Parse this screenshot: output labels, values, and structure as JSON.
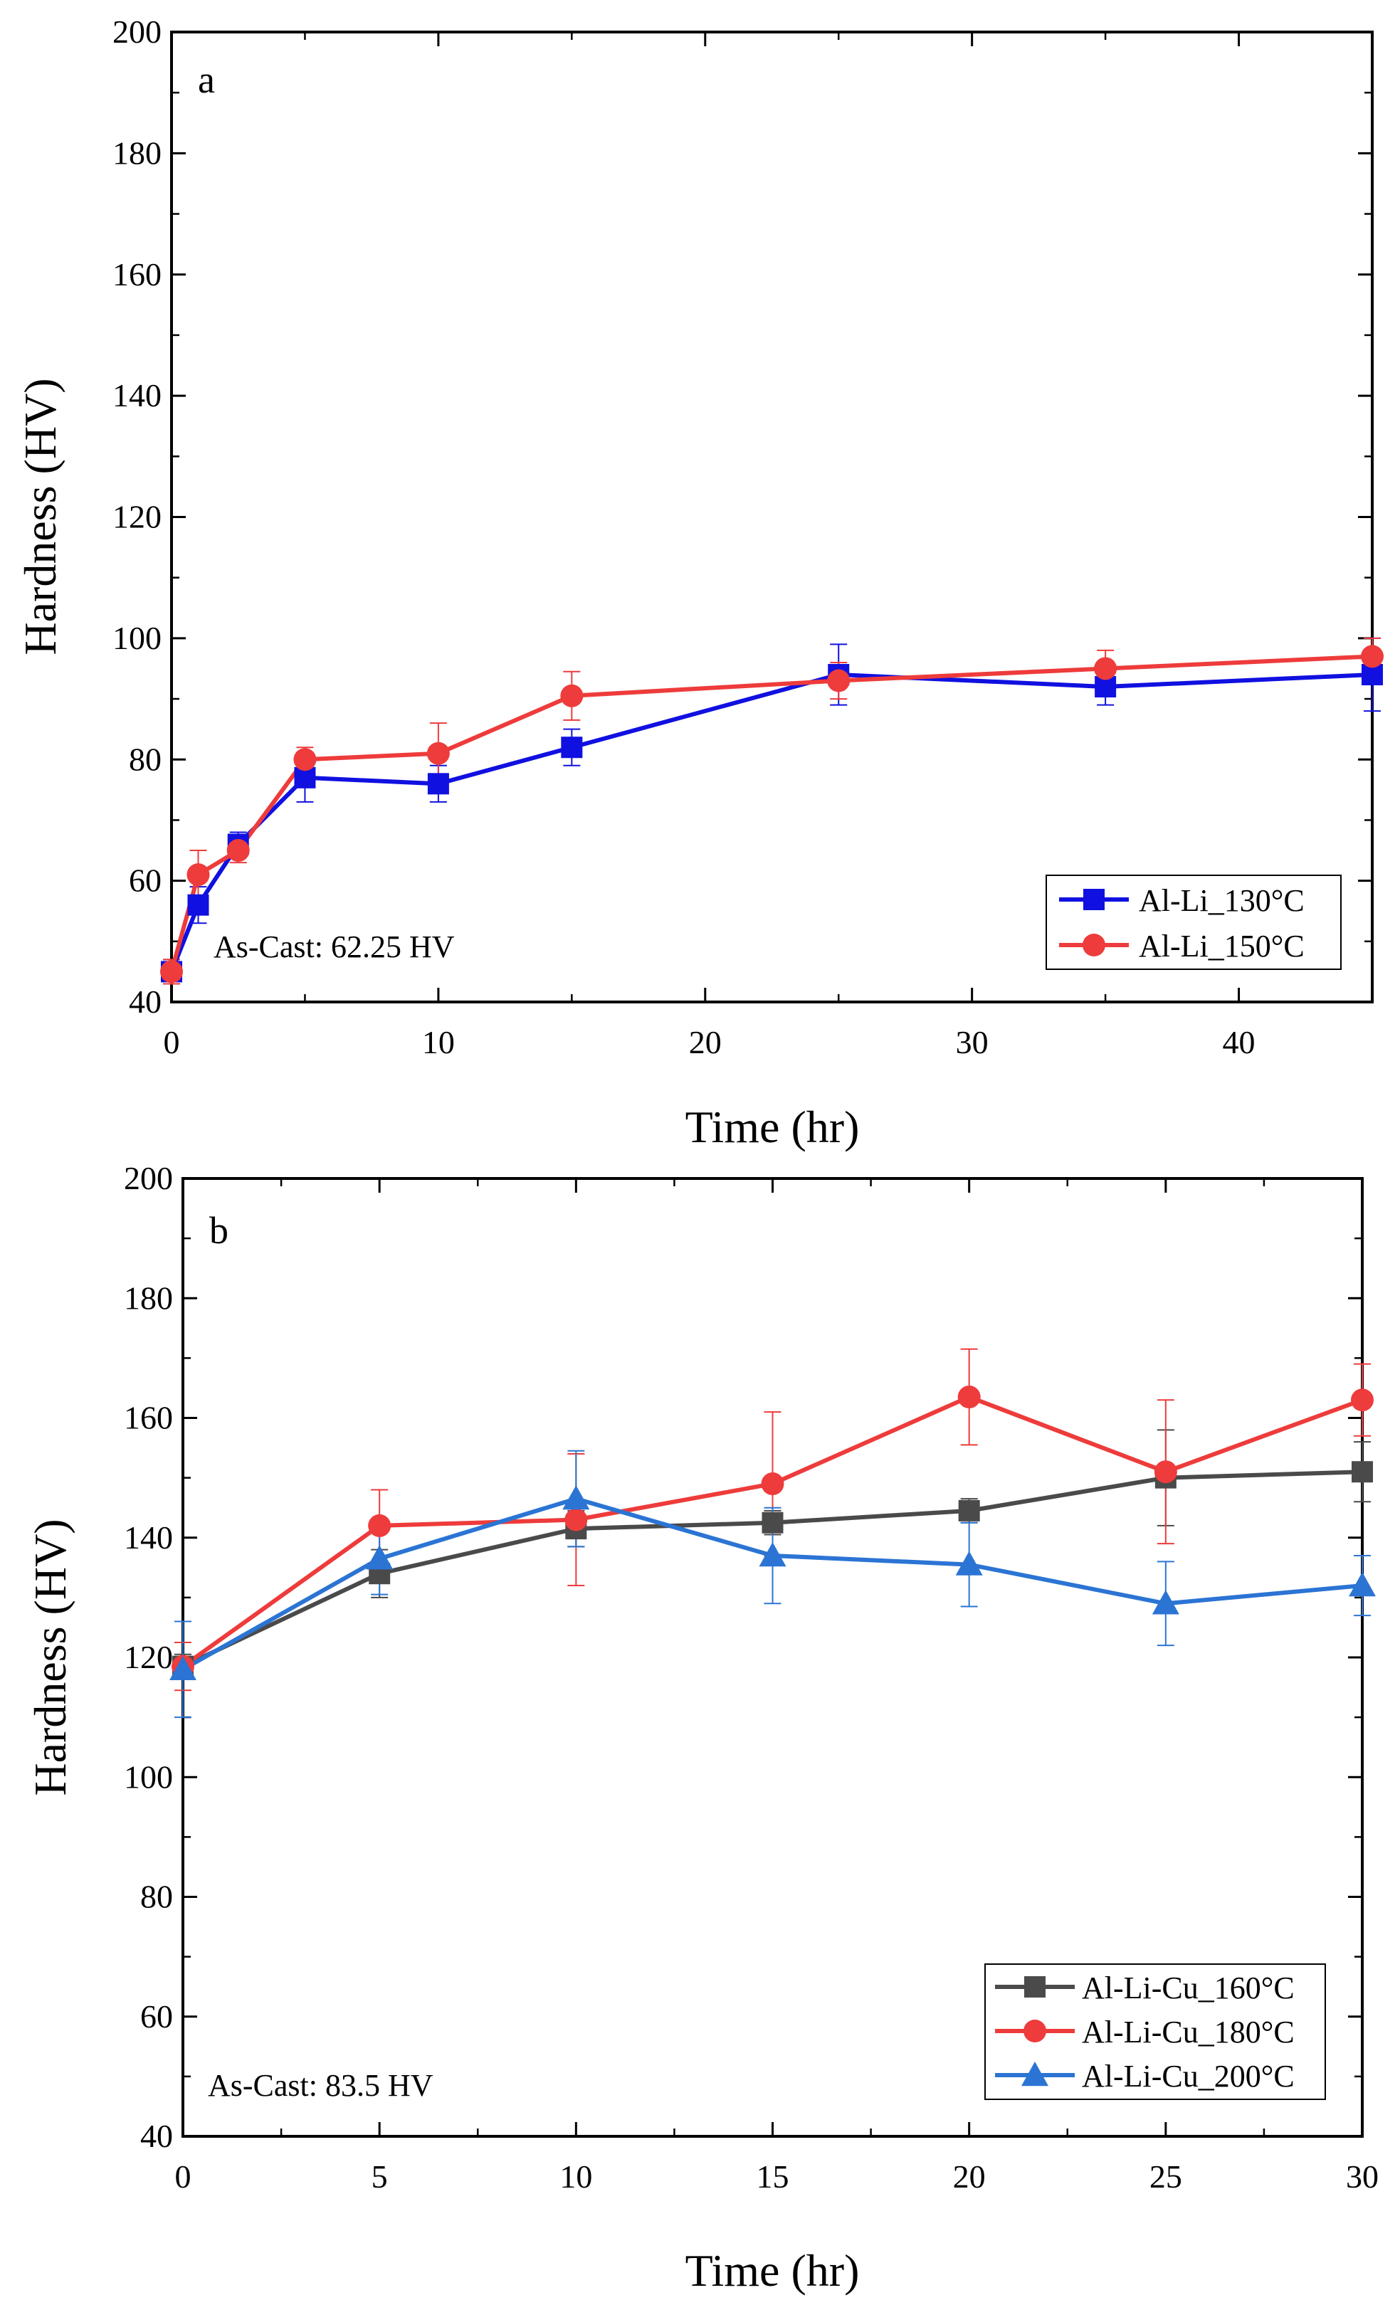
{
  "chart_data": [
    {
      "type": "line",
      "panel_label": "a",
      "xlabel": "Time (hr)",
      "ylabel": "Hardness (HV)",
      "xlim": [
        0,
        45
      ],
      "ylim": [
        40,
        200
      ],
      "xticks": [
        0,
        10,
        20,
        30,
        40
      ],
      "yticks": [
        40,
        60,
        80,
        100,
        120,
        140,
        160,
        180,
        200
      ],
      "annotation": "As-Cast: 62.25 HV",
      "legend_position": "bottom-right",
      "grid": false,
      "series": [
        {
          "name": "Al-Li_130°C",
          "color": "#1010e0",
          "marker": "square",
          "x": [
            0,
            1,
            2.5,
            5,
            10,
            15,
            25,
            35,
            45
          ],
          "values": [
            45,
            56,
            66,
            77,
            76,
            82,
            94,
            92,
            94
          ],
          "errors": [
            2,
            3,
            2,
            4,
            3,
            3,
            5,
            3,
            6
          ]
        },
        {
          "name": "Al-Li_150°C",
          "color": "#ee3b3b",
          "marker": "circle",
          "x": [
            0,
            1,
            2.5,
            5,
            10,
            15,
            25,
            35,
            45
          ],
          "values": [
            45,
            61,
            65,
            80,
            81,
            90.5,
            93,
            95,
            97
          ],
          "errors": [
            2,
            4,
            2,
            2,
            5,
            4,
            3,
            3,
            3
          ]
        }
      ]
    },
    {
      "type": "line",
      "panel_label": "b",
      "xlabel": "Time (hr)",
      "ylabel": "Hardness (HV)",
      "xlim": [
        0,
        30
      ],
      "ylim": [
        40,
        200
      ],
      "xticks": [
        0,
        5,
        10,
        15,
        20,
        25,
        30
      ],
      "yticks": [
        40,
        60,
        80,
        100,
        120,
        140,
        160,
        180,
        200
      ],
      "annotation": "As-Cast: 83.5 HV",
      "legend_position": "bottom-right",
      "grid": false,
      "series": [
        {
          "name": "Al-Li-Cu_160°C",
          "color": "#4a4a4a",
          "marker": "square",
          "x": [
            0,
            5,
            10,
            15,
            20,
            25,
            30
          ],
          "values": [
            118.5,
            134,
            141.5,
            142.5,
            144.5,
            150,
            151
          ],
          "errors": [
            2,
            4,
            3,
            2,
            2,
            8,
            5
          ]
        },
        {
          "name": "Al-Li-Cu_180°C",
          "color": "#ee3b3b",
          "marker": "circle",
          "x": [
            0,
            5,
            10,
            15,
            20,
            25,
            30
          ],
          "values": [
            118.5,
            142,
            143,
            149,
            163.5,
            151,
            163
          ],
          "errors": [
            4,
            6,
            11,
            12,
            8,
            12,
            6
          ]
        },
        {
          "name": "Al-Li-Cu_200°C",
          "color": "#2b74d4",
          "marker": "triangle",
          "x": [
            0,
            5,
            10,
            15,
            20,
            25,
            30
          ],
          "values": [
            118,
            136.5,
            146.5,
            137,
            135.5,
            129,
            132
          ],
          "errors": [
            8,
            6,
            8,
            8,
            7,
            7,
            5
          ]
        }
      ]
    }
  ]
}
